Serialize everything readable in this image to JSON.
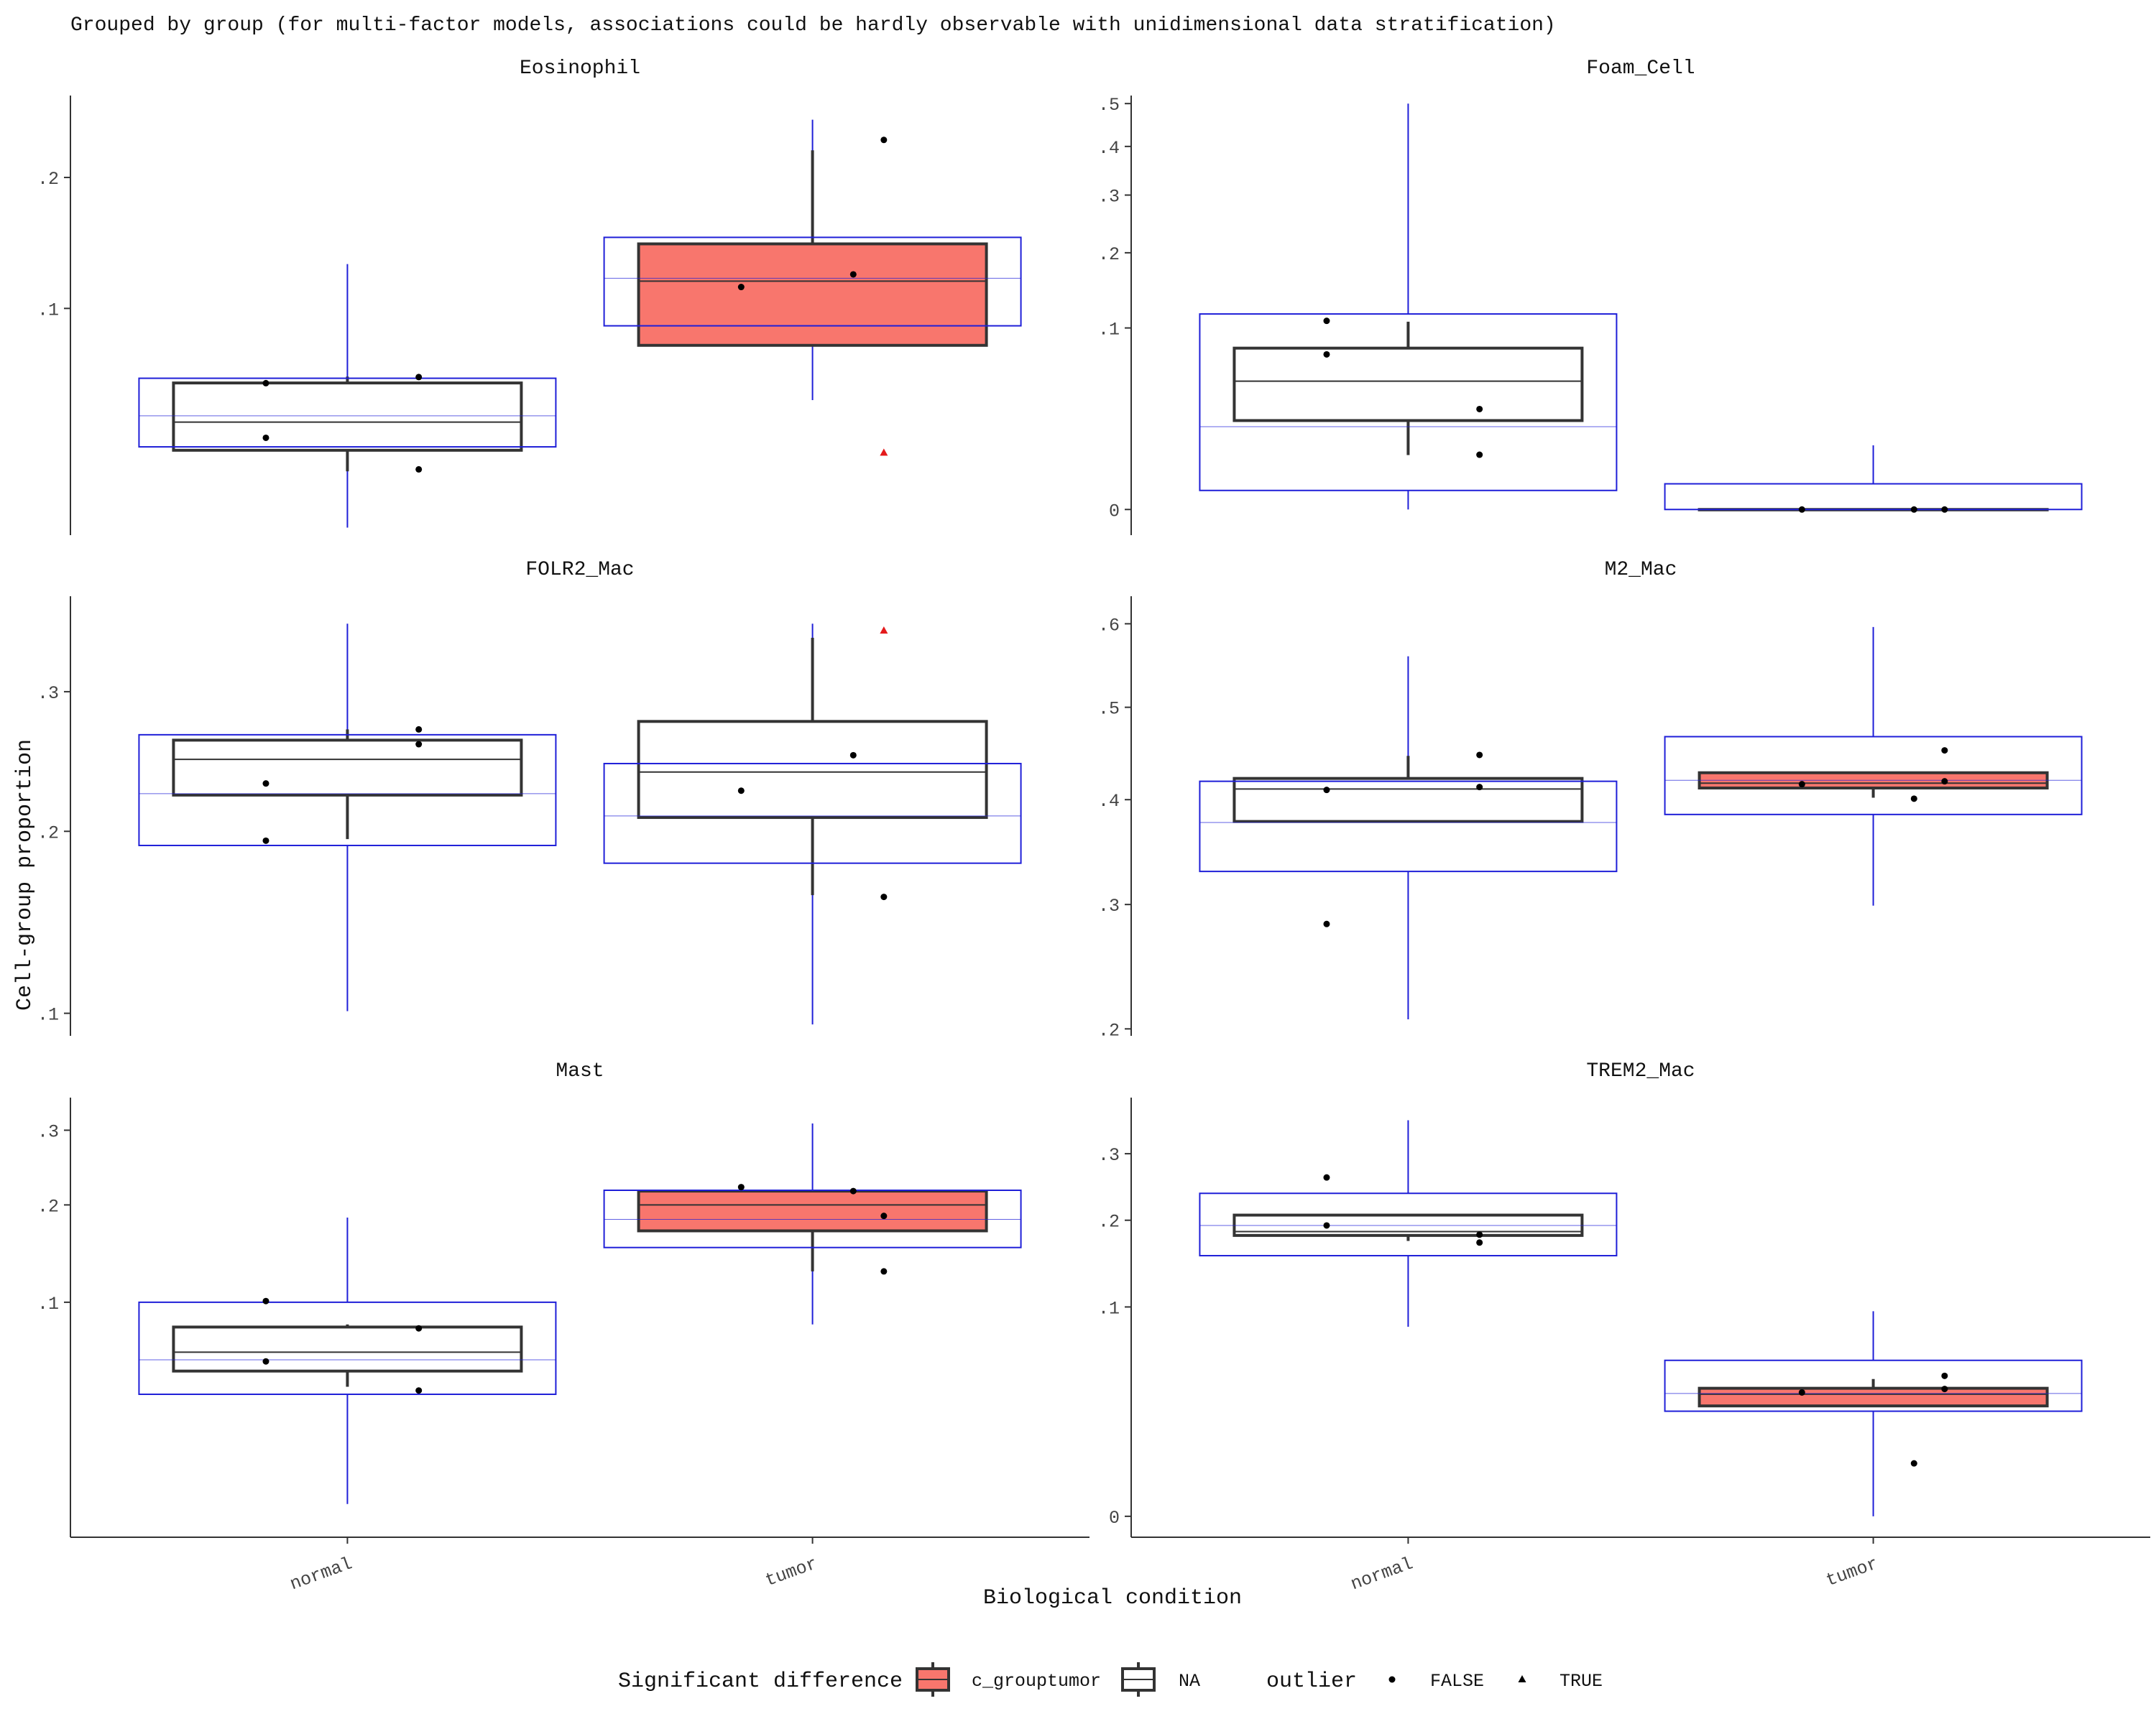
{
  "chart_data": {
    "type": "box",
    "title": "Grouped by group (for multi-factor models, associations could be hardly observable with unidimensional data stratification)",
    "xlabel": "Biological condition",
    "ylabel": "Cell-group proportion",
    "categories": [
      "normal",
      "tumor"
    ],
    "scale": "sqrt",
    "colors": {
      "significant_fill": "#F8766D",
      "box_stroke": "#333333",
      "interval_stroke": "#1f1fd8",
      "outlier_true": "#e41a1c",
      "axis": "#333333"
    },
    "legend": {
      "position": "bottom",
      "fill_title": "Significant difference",
      "fill_items": [
        {
          "label": "c_grouptumor",
          "fill": "#F8766D"
        },
        {
          "label": "NA",
          "fill": "#ffffff"
        }
      ],
      "shape_title": "outlier",
      "shape_items": [
        {
          "label": "FALSE",
          "shape": "circle"
        },
        {
          "label": "TRUE",
          "shape": "triangle"
        }
      ]
    },
    "panels": [
      {
        "title": "Eosinophil",
        "ylim": [
          0.008,
          0.28
        ],
        "yticks": [
          {
            "v": 0.1,
            "label": ".1"
          },
          {
            "v": 0.2,
            "label": ".2"
          }
        ],
        "groups": [
          {
            "category": "normal",
            "significant": false,
            "box": {
              "lower": 0.0304,
              "middle": 0.041,
              "upper": 0.0584,
              "whisker_lo": 0.0235,
              "whisker_hi": 0.0615
            },
            "interval": {
              "lower": 0.0316,
              "middle": 0.0436,
              "upper": 0.0607,
              "lo": 0.0094,
              "hi": 0.13
            },
            "points": [
              {
                "x": -0.08,
                "y": 0.0583,
                "outlier": false
              },
              {
                "x": 0.07,
                "y": 0.0613,
                "outlier": false
              },
              {
                "x": -0.08,
                "y": 0.0349,
                "outlier": false
              },
              {
                "x": 0.07,
                "y": 0.0241,
                "outlier": false
              }
            ]
          },
          {
            "category": "tumor",
            "significant": true,
            "box": {
              "lower": 0.078,
              "middle": 0.118,
              "upper": 0.145,
              "whisker_lo": 0.078,
              "whisker_hi": 0.225
            },
            "interval": {
              "lower": 0.0893,
              "middle": 0.12,
              "upper": 0.15,
              "lo": 0.0504,
              "hi": 0.255
            },
            "points": [
              {
                "x": -0.07,
                "y": 0.114,
                "outlier": false
              },
              {
                "x": 0.04,
                "y": 0.1227,
                "outlier": false
              },
              {
                "x": 0.07,
                "y": 0.235,
                "outlier": false
              },
              {
                "x": 0.07,
                "y": 0.0295,
                "outlier": true
              }
            ]
          }
        ]
      },
      {
        "title": "Foam_Cell",
        "ylim": [
          -0.002,
          0.52
        ],
        "yticks": [
          {
            "v": 0,
            "label": "0"
          },
          {
            "v": 0.1,
            "label": ".1"
          },
          {
            "v": 0.2,
            "label": ".2"
          },
          {
            "v": 0.3,
            "label": ".3"
          },
          {
            "v": 0.4,
            "label": ".4"
          },
          {
            "v": 0.5,
            "label": ".5"
          }
        ],
        "groups": [
          {
            "category": "normal",
            "significant": false,
            "box": {
              "lower": 0.024,
              "middle": 0.05,
              "upper": 0.079,
              "whisker_lo": 0.009,
              "whisker_hi": 0.107
            },
            "interval": {
              "lower": 0.0011,
              "middle": 0.0208,
              "upper": 0.116,
              "lo": 0,
              "hi": 0.5
            },
            "points": [
              {
                "x": -0.08,
                "y": 0.108,
                "outlier": false
              },
              {
                "x": -0.08,
                "y": 0.073,
                "outlier": false
              },
              {
                "x": 0.07,
                "y": 0.0306,
                "outlier": false
              },
              {
                "x": 0.07,
                "y": 0.0091,
                "outlier": false
              }
            ]
          },
          {
            "category": "tumor",
            "significant": false,
            "box": {
              "lower": 0,
              "middle": 0,
              "upper": 0,
              "whisker_lo": 0,
              "whisker_hi": 0
            },
            "interval": {
              "lower": 0,
              "middle": 0,
              "upper": 0.002,
              "lo": 0,
              "hi": 0.0125
            },
            "points": [
              {
                "x": -0.07,
                "y": 0,
                "outlier": false
              },
              {
                "x": 0.04,
                "y": 0,
                "outlier": false
              },
              {
                "x": 0.07,
                "y": 0,
                "outlier": false
              }
            ]
          }
        ]
      },
      {
        "title": "FOLR2_Mac",
        "ylim": [
          0.09,
          0.38
        ],
        "yticks": [
          {
            "v": 0.1,
            "label": ".1"
          },
          {
            "v": 0.2,
            "label": ".2"
          },
          {
            "v": 0.3,
            "label": ".3"
          }
        ],
        "groups": [
          {
            "category": "normal",
            "significant": false,
            "box": {
              "lower": 0.224,
              "middle": 0.249,
              "upper": 0.263,
              "whisker_lo": 0.195,
              "whisker_hi": 0.271
            },
            "interval": {
              "lower": 0.191,
              "middle": 0.225,
              "upper": 0.267,
              "lo": 0.101,
              "hi": 0.356
            },
            "points": [
              {
                "x": 0.07,
                "y": 0.271,
                "outlier": false
              },
              {
                "x": 0.07,
                "y": 0.26,
                "outlier": false
              },
              {
                "x": -0.08,
                "y": 0.232,
                "outlier": false
              },
              {
                "x": -0.08,
                "y": 0.194,
                "outlier": false
              }
            ]
          },
          {
            "category": "tumor",
            "significant": false,
            "box": {
              "lower": 0.209,
              "middle": 0.24,
              "upper": 0.277,
              "whisker_lo": 0.161,
              "whisker_hi": 0.344
            },
            "interval": {
              "lower": 0.18,
              "middle": 0.21,
              "upper": 0.246,
              "lo": 0.095,
              "hi": 0.356
            },
            "points": [
              {
                "x": 0.04,
                "y": 0.252,
                "outlier": false
              },
              {
                "x": -0.07,
                "y": 0.227,
                "outlier": false
              },
              {
                "x": 0.07,
                "y": 0.16,
                "outlier": false
              },
              {
                "x": 0.07,
                "y": 0.35,
                "outlier": true
              }
            ]
          }
        ]
      },
      {
        "title": "M2_Mac",
        "ylim": [
          0.195,
          0.635
        ],
        "yticks": [
          {
            "v": 0.2,
            "label": ".2"
          },
          {
            "v": 0.3,
            "label": ".3"
          },
          {
            "v": 0.4,
            "label": ".4"
          },
          {
            "v": 0.5,
            "label": ".5"
          },
          {
            "v": 0.6,
            "label": ".6"
          }
        ],
        "groups": [
          {
            "category": "normal",
            "significant": false,
            "box": {
              "lower": 0.378,
              "middle": 0.411,
              "upper": 0.422,
              "whisker_lo": 0.378,
              "whisker_hi": 0.446
            },
            "interval": {
              "lower": 0.33,
              "middle": 0.377,
              "upper": 0.419,
              "lo": 0.207,
              "hi": 0.56
            },
            "points": [
              {
                "x": 0.07,
                "y": 0.447,
                "outlier": false
              },
              {
                "x": 0.07,
                "y": 0.413,
                "outlier": false
              },
              {
                "x": -0.08,
                "y": 0.41,
                "outlier": false
              },
              {
                "x": -0.08,
                "y": 0.283,
                "outlier": false
              }
            ]
          },
          {
            "category": "tumor",
            "significant": true,
            "box": {
              "lower": 0.412,
              "middle": 0.417,
              "upper": 0.428,
              "whisker_lo": 0.402,
              "whisker_hi": 0.428
            },
            "interval": {
              "lower": 0.385,
              "middle": 0.42,
              "upper": 0.467,
              "lo": 0.299,
              "hi": 0.596
            },
            "points": [
              {
                "x": 0.07,
                "y": 0.452,
                "outlier": false
              },
              {
                "x": -0.07,
                "y": 0.416,
                "outlier": false
              },
              {
                "x": 0.07,
                "y": 0.419,
                "outlier": false
              },
              {
                "x": 0.04,
                "y": 0.401,
                "outlier": false
              }
            ]
          }
        ]
      },
      {
        "title": "Mast",
        "ylim": [
          0.0,
          0.35
        ],
        "yticks": [
          {
            "v": 0.1,
            "label": ".1"
          },
          {
            "v": 0.2,
            "label": ".2"
          },
          {
            "v": 0.3,
            "label": ".3"
          }
        ],
        "groups": [
          {
            "category": "normal",
            "significant": false,
            "box": {
              "lower": 0.05,
              "middle": 0.062,
              "upper": 0.08,
              "whisker_lo": 0.041,
              "whisker_hi": 0.082
            },
            "interval": {
              "lower": 0.037,
              "middle": 0.057,
              "upper": 0.1,
              "lo": 0.002,
              "hi": 0.185
            },
            "points": [
              {
                "x": -0.08,
                "y": 0.101,
                "outlier": false
              },
              {
                "x": 0.07,
                "y": 0.079,
                "outlier": false
              },
              {
                "x": -0.08,
                "y": 0.056,
                "outlier": false
              },
              {
                "x": 0.07,
                "y": 0.039,
                "outlier": false
              }
            ]
          },
          {
            "category": "tumor",
            "significant": true,
            "box": {
              "lower": 0.17,
              "middle": 0.2,
              "upper": 0.217,
              "whisker_lo": 0.128,
              "whisker_hi": 0.217
            },
            "interval": {
              "lower": 0.152,
              "middle": 0.183,
              "upper": 0.218,
              "lo": 0.082,
              "hi": 0.31
            },
            "points": [
              {
                "x": -0.07,
                "y": 0.222,
                "outlier": false
              },
              {
                "x": 0.04,
                "y": 0.217,
                "outlier": false
              },
              {
                "x": 0.07,
                "y": 0.187,
                "outlier": false
              },
              {
                "x": 0.07,
                "y": 0.128,
                "outlier": false
              }
            ]
          }
        ]
      },
      {
        "title": "TREM2_Mac",
        "ylim": [
          -0.001,
          0.4
        ],
        "yticks": [
          {
            "v": 0,
            "label": "0"
          },
          {
            "v": 0.1,
            "label": ".1"
          },
          {
            "v": 0.2,
            "label": ".2"
          },
          {
            "v": 0.3,
            "label": ".3"
          }
        ],
        "groups": [
          {
            "category": "normal",
            "significant": false,
            "box": {
              "lower": 0.18,
              "middle": 0.185,
              "upper": 0.207,
              "whisker_lo": 0.173,
              "whisker_hi": 0.207
            },
            "interval": {
              "lower": 0.155,
              "middle": 0.193,
              "upper": 0.238,
              "lo": 0.082,
              "hi": 0.358
            },
            "points": [
              {
                "x": -0.08,
                "y": 0.262,
                "outlier": false
              },
              {
                "x": -0.08,
                "y": 0.193,
                "outlier": false
              },
              {
                "x": 0.07,
                "y": 0.181,
                "outlier": false
              },
              {
                "x": 0.07,
                "y": 0.171,
                "outlier": false
              }
            ]
          },
          {
            "category": "tumor",
            "significant": true,
            "box": {
              "lower": 0.0278,
              "middle": 0.034,
              "upper": 0.0374,
              "whisker_lo": 0.0278,
              "whisker_hi": 0.043
            },
            "interval": {
              "lower": 0.0252,
              "middle": 0.0344,
              "upper": 0.0555,
              "lo": 0.0,
              "hi": 0.096
            },
            "points": [
              {
                "x": 0.07,
                "y": 0.045,
                "outlier": false
              },
              {
                "x": 0.07,
                "y": 0.037,
                "outlier": false
              },
              {
                "x": -0.07,
                "y": 0.035,
                "outlier": false
              },
              {
                "x": 0.04,
                "y": 0.0064,
                "outlier": false
              }
            ]
          }
        ]
      }
    ]
  }
}
